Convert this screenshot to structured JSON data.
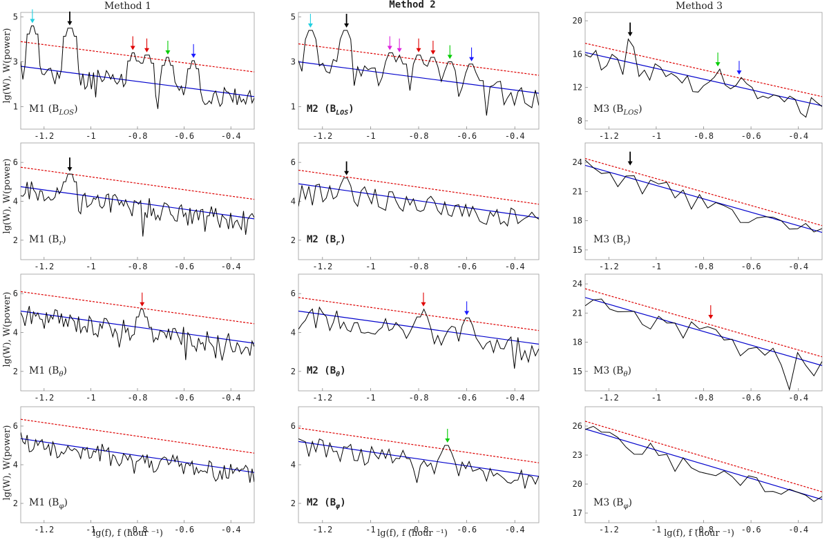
{
  "figure": {
    "column_titles": [
      "Method 1",
      "Method 2",
      "Method 3"
    ],
    "ylabel": "lg(W), W(power)",
    "xlabel": "lg(f), f (hour ⁻¹)",
    "xticks": [
      -1.2,
      -1,
      -0.8,
      -0.6,
      -0.4
    ],
    "xtick_labels": [
      "-1.2",
      "-1",
      "-0.8",
      "-0.6",
      "-0.4"
    ]
  },
  "chart_data": [
    {
      "id": "m1-blos",
      "type": "line",
      "label_main": "M1 (B",
      "label_sub": "LOS",
      "label_close": ")",
      "method": 1,
      "xlim": [
        -1.3,
        -0.3
      ],
      "ylim": [
        0,
        5.2
      ],
      "yticks": [
        1,
        3,
        5
      ],
      "n": 110,
      "seed": 11,
      "amp": 0.45,
      "fit": [
        2.8,
        1.45
      ],
      "conf_offset": 1.1,
      "peaks": [
        [
          -1.25,
          4.6,
          "cyan"
        ],
        [
          -1.09,
          4.5,
          "black"
        ],
        [
          -0.82,
          3.4,
          "red"
        ],
        [
          -0.76,
          3.3,
          "red"
        ],
        [
          -0.67,
          3.2,
          "green"
        ],
        [
          -0.56,
          3.05,
          "blue"
        ]
      ]
    },
    {
      "id": "m2-blos",
      "type": "line",
      "label_main": "M2 (B",
      "label_sub": "LOS",
      "label_close": ")",
      "method": 2,
      "xlim": [
        -1.3,
        -0.3
      ],
      "ylim": [
        0,
        5.2
      ],
      "yticks": [
        1,
        3,
        5
      ],
      "n": 70,
      "seed": 12,
      "amp": 0.5,
      "fit": [
        3.0,
        1.6
      ],
      "conf_offset": 0.8,
      "peaks": [
        [
          -1.25,
          4.4,
          "cyan"
        ],
        [
          -1.1,
          4.4,
          "black"
        ],
        [
          -0.92,
          3.4,
          "magenta"
        ],
        [
          -0.88,
          3.3,
          "magenta"
        ],
        [
          -0.8,
          3.3,
          "red"
        ],
        [
          -0.74,
          3.2,
          "red"
        ],
        [
          -0.67,
          3.0,
          "green"
        ],
        [
          -0.58,
          2.9,
          "blue"
        ]
      ]
    },
    {
      "id": "m3-blos",
      "type": "line",
      "label_main": "M3 (B",
      "label_sub": "LOS",
      "label_close": ")",
      "method": 3,
      "xlim": [
        -1.3,
        -0.3
      ],
      "ylim": [
        7,
        21
      ],
      "yticks": [
        8,
        12,
        16,
        20
      ],
      "n": 45,
      "seed": 13,
      "amp": 1.2,
      "fit": [
        16.2,
        9.8
      ],
      "conf_offset": 1.1,
      "peaks": [
        [
          -1.11,
          17.8,
          "black"
        ],
        [
          -0.74,
          14.2,
          "green"
        ],
        [
          -0.65,
          13.2,
          "blue"
        ]
      ]
    },
    {
      "id": "m1-br",
      "type": "line",
      "label_main": "M1 (B",
      "label_sub": "r",
      "label_close": ")",
      "method": 1,
      "xlim": [
        -1.3,
        -0.3
      ],
      "ylim": [
        1,
        7
      ],
      "yticks": [
        2,
        4,
        6
      ],
      "n": 110,
      "seed": 21,
      "amp": 0.5,
      "fit": [
        4.75,
        3.1
      ],
      "conf_offset": 1.0,
      "peaks": [
        [
          -1.09,
          5.4,
          "black"
        ]
      ]
    },
    {
      "id": "m2-br",
      "type": "line",
      "label_main": "M2 (B",
      "label_sub": "r",
      "label_close": ")",
      "method": 2,
      "xlim": [
        -1.3,
        -0.3
      ],
      "ylim": [
        1,
        7
      ],
      "yticks": [
        2,
        4,
        6
      ],
      "n": 70,
      "seed": 22,
      "amp": 0.5,
      "fit": [
        4.9,
        3.15
      ],
      "conf_offset": 0.7,
      "peaks": [
        [
          -1.1,
          5.2,
          "black"
        ]
      ]
    },
    {
      "id": "m3-br",
      "type": "line",
      "label_main": "M3 (B",
      "label_sub": "r",
      "label_close": ")",
      "method": 3,
      "xlim": [
        -1.3,
        -0.3
      ],
      "ylim": [
        14,
        26
      ],
      "yticks": [
        15,
        18,
        21,
        24
      ],
      "n": 30,
      "seed": 23,
      "amp": 1.0,
      "fit": [
        23.7,
        16.8
      ],
      "conf_offset": 0.7,
      "peaks": [
        [
          -1.11,
          23.4,
          "black"
        ]
      ]
    },
    {
      "id": "m1-btheta",
      "type": "line",
      "label_main": "M1 (B",
      "label_sub": "θ",
      "label_close": ")",
      "method": 1,
      "xlim": [
        -1.3,
        -0.3
      ],
      "ylim": [
        1,
        7
      ],
      "yticks": [
        2,
        4,
        6
      ],
      "n": 110,
      "seed": 31,
      "amp": 0.5,
      "fit": [
        5.1,
        3.45
      ],
      "conf_offset": 1.0,
      "peaks": [
        [
          -0.78,
          5.2,
          "red"
        ]
      ]
    },
    {
      "id": "m2-btheta",
      "type": "line",
      "label_main": "M2 (B",
      "label_sub": "θ",
      "label_close": ")",
      "method": 2,
      "xlim": [
        -1.3,
        -0.3
      ],
      "ylim": [
        1,
        7
      ],
      "yticks": [
        2,
        4,
        6
      ],
      "n": 70,
      "seed": 32,
      "amp": 0.5,
      "fit": [
        5.1,
        3.4
      ],
      "conf_offset": 0.7,
      "peaks": [
        [
          -0.78,
          5.2,
          "red"
        ],
        [
          -0.6,
          4.75,
          "blue"
        ]
      ]
    },
    {
      "id": "m3-btheta",
      "type": "line",
      "label_main": "M3 (B",
      "label_sub": "θ",
      "label_close": ")",
      "method": 3,
      "xlim": [
        -1.3,
        -0.3
      ],
      "ylim": [
        13,
        25
      ],
      "yticks": [
        15,
        18,
        21,
        24
      ],
      "n": 30,
      "seed": 33,
      "amp": 1.0,
      "fit": [
        22.6,
        15.6
      ],
      "conf_offset": 0.9,
      "peaks": [
        [
          -0.77,
          20.1,
          "red"
        ]
      ]
    },
    {
      "id": "m1-bphi",
      "type": "line",
      "label_main": "M1 (B",
      "label_sub": "φ",
      "label_close": ")",
      "method": 1,
      "xlim": [
        -1.3,
        -0.3
      ],
      "ylim": [
        1,
        7
      ],
      "yticks": [
        2,
        4,
        6
      ],
      "n": 110,
      "seed": 41,
      "amp": 0.5,
      "fit": [
        5.35,
        3.6
      ],
      "conf_offset": 1.0,
      "peaks": []
    },
    {
      "id": "m2-bphi",
      "type": "line",
      "label_main": "M2 (B",
      "label_sub": "φ",
      "label_close": ")",
      "method": 2,
      "xlim": [
        -1.3,
        -0.3
      ],
      "ylim": [
        1,
        7
      ],
      "yticks": [
        2,
        4,
        6
      ],
      "n": 70,
      "seed": 42,
      "amp": 0.5,
      "fit": [
        5.2,
        3.4
      ],
      "conf_offset": 0.7,
      "peaks": [
        [
          -0.68,
          5.0,
          "green"
        ]
      ]
    },
    {
      "id": "m3-bphi",
      "type": "line",
      "label_main": "M3 (B",
      "label_sub": "φ",
      "label_close": ")",
      "method": 3,
      "xlim": [
        -1.3,
        -0.3
      ],
      "ylim": [
        16,
        28
      ],
      "yticks": [
        17,
        20,
        23,
        26
      ],
      "n": 30,
      "seed": 43,
      "amp": 0.8,
      "fit": [
        25.7,
        18.4
      ],
      "conf_offset": 0.8,
      "peaks": []
    }
  ],
  "colors": {
    "series": "#000000",
    "fit": "#0000cc",
    "confidence": "#dd0000",
    "cyan": "#22cfe0",
    "black": "#000000",
    "red": "#e00000",
    "green": "#00cc00",
    "blue": "#1a1aff",
    "magenta": "#dd22dd"
  }
}
